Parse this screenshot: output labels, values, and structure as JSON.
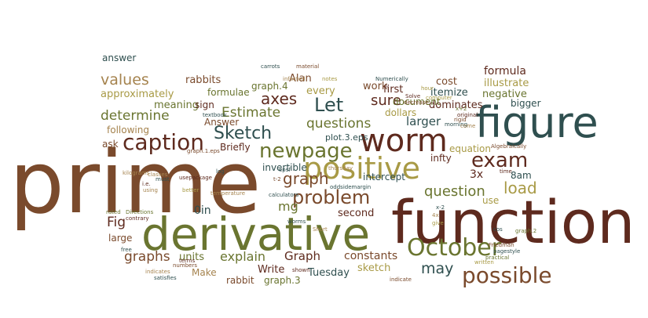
{
  "palette": {
    "brown": "#7a4a2c",
    "dark_red": "#5e2a1e",
    "olive": "#6a7530",
    "khaki": "#a89a45",
    "teal": "#2f4f4f",
    "tan": "#a5834e"
  },
  "words": [
    "prime",
    "function",
    "derivative",
    "figure",
    "worm",
    "positive",
    "newpage",
    "October",
    "possible",
    "caption",
    "Sketch",
    "exam",
    "graph",
    "problem",
    "Let",
    "axes",
    "Estimate",
    "questions",
    "load",
    "question",
    "sure",
    "determine",
    "values",
    "graphs",
    "explain",
    "Graph",
    "may",
    "Fig",
    "mg",
    "units",
    "Write",
    "constants",
    "sketch",
    "Tuesday",
    "rabbit",
    "graph.3",
    "Make",
    "formula",
    "illustrate",
    "negative",
    "bigger",
    "cost",
    "itemize",
    "dominates",
    "larger",
    "work",
    "first",
    "every",
    "dollars",
    "document",
    "equation",
    "infty",
    "intercept",
    "invertible",
    "second",
    "3x",
    "8am",
    "use",
    "plot.3.eps",
    "Briefly",
    "Answer",
    "ask",
    "following",
    "meaning",
    "sign",
    "formulae",
    "rabbits",
    "graph.4",
    "approximately",
    "Alan",
    "answer",
    "large",
    "0in",
    "Numerically",
    "Solve",
    "hour",
    "decrease",
    "original",
    "x+2",
    "carrots",
    "material",
    "notes",
    "infected",
    "textbook",
    "graph.1.eps",
    "classes",
    "must",
    "usepackage",
    "computer",
    "rigid",
    "morning",
    "come",
    "thursday",
    "time",
    "Algebraically",
    "log",
    "epsf",
    "t-2",
    "oddsidemargin",
    "i.e.",
    "using",
    "better",
    "temperature",
    "calculators",
    "rated",
    "Directions",
    "contrary",
    "worms",
    "Short",
    "4x",
    "give",
    "x-2",
    "cos",
    "graph.2",
    "Friedman",
    "pagestyle",
    "indicates",
    "numbers",
    "satisfies",
    "shown",
    "terms",
    "free",
    "indicate",
    "written",
    "practical",
    "kilograms"
  ]
}
